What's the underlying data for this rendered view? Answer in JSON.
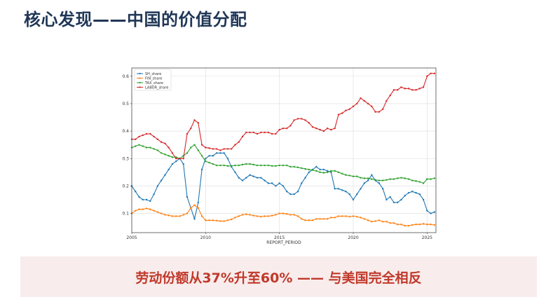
{
  "slide": {
    "title": "核心发现——中国的价值分配",
    "banner_text": "劳动份额从37%升至60% —— 与美国完全相反"
  },
  "chart_data": {
    "type": "line",
    "xlabel": "REPORT_PERIOD",
    "ylabel": "",
    "xlim": [
      2005,
      2025.6
    ],
    "ylim": [
      0.03,
      0.63
    ],
    "x_ticks": [
      2005,
      2010,
      2015,
      2020,
      2025
    ],
    "y_ticks": [
      0.1,
      0.2,
      0.3,
      0.4,
      0.5,
      0.6
    ],
    "y_tick_labels": [
      "0.1",
      "0.2",
      "0.3",
      "0.4",
      "0.5",
      "0.6"
    ],
    "grid": true,
    "legend_position": "top-left",
    "x": [
      2005.0,
      2005.25,
      2005.5,
      2005.75,
      2006.0,
      2006.25,
      2006.5,
      2006.75,
      2007.0,
      2007.25,
      2007.5,
      2007.75,
      2008.0,
      2008.25,
      2008.5,
      2008.75,
      2009.0,
      2009.25,
      2009.5,
      2009.75,
      2010.0,
      2010.25,
      2010.5,
      2010.75,
      2011.0,
      2011.25,
      2011.5,
      2011.75,
      2012.0,
      2012.25,
      2012.5,
      2012.75,
      2013.0,
      2013.25,
      2013.5,
      2013.75,
      2014.0,
      2014.25,
      2014.5,
      2014.75,
      2015.0,
      2015.25,
      2015.5,
      2015.75,
      2016.0,
      2016.25,
      2016.5,
      2016.75,
      2017.0,
      2017.25,
      2017.5,
      2017.75,
      2018.0,
      2018.25,
      2018.5,
      2018.75,
      2019.0,
      2019.25,
      2019.5,
      2019.75,
      2020.0,
      2020.25,
      2020.5,
      2020.75,
      2021.0,
      2021.25,
      2021.5,
      2021.75,
      2022.0,
      2022.25,
      2022.5,
      2022.75,
      2023.0,
      2023.25,
      2023.5,
      2023.75,
      2024.0,
      2024.25,
      2024.5,
      2024.75,
      2025.0,
      2025.25,
      2025.5
    ],
    "series": [
      {
        "name": "SH_share",
        "color": "#1f77b4",
        "marker": "o",
        "values": [
          0.2,
          0.18,
          0.16,
          0.15,
          0.15,
          0.145,
          0.17,
          0.2,
          0.22,
          0.24,
          0.26,
          0.28,
          0.29,
          0.3,
          0.28,
          0.16,
          0.12,
          0.08,
          0.14,
          0.26,
          0.3,
          0.31,
          0.31,
          0.32,
          0.32,
          0.32,
          0.3,
          0.27,
          0.25,
          0.23,
          0.22,
          0.23,
          0.24,
          0.235,
          0.23,
          0.23,
          0.22,
          0.21,
          0.21,
          0.2,
          0.21,
          0.2,
          0.18,
          0.17,
          0.17,
          0.18,
          0.21,
          0.23,
          0.25,
          0.26,
          0.27,
          0.26,
          0.26,
          0.255,
          0.25,
          0.19,
          0.19,
          0.185,
          0.18,
          0.17,
          0.15,
          0.17,
          0.19,
          0.21,
          0.22,
          0.24,
          0.22,
          0.21,
          0.19,
          0.15,
          0.16,
          0.14,
          0.14,
          0.15,
          0.165,
          0.175,
          0.18,
          0.175,
          0.17,
          0.15,
          0.11,
          0.1,
          0.105
        ]
      },
      {
        "name": "FIN_share",
        "color": "#ff7f0e",
        "marker": "o",
        "values": [
          0.1,
          0.11,
          0.115,
          0.115,
          0.118,
          0.115,
          0.11,
          0.105,
          0.1,
          0.095,
          0.093,
          0.09,
          0.09,
          0.09,
          0.095,
          0.1,
          0.12,
          0.13,
          0.12,
          0.09,
          0.075,
          0.075,
          0.075,
          0.074,
          0.072,
          0.072,
          0.075,
          0.078,
          0.085,
          0.09,
          0.095,
          0.097,
          0.095,
          0.092,
          0.09,
          0.088,
          0.09,
          0.09,
          0.092,
          0.095,
          0.1,
          0.1,
          0.098,
          0.095,
          0.095,
          0.09,
          0.08,
          0.075,
          0.075,
          0.075,
          0.08,
          0.08,
          0.08,
          0.08,
          0.085,
          0.085,
          0.09,
          0.09,
          0.09,
          0.088,
          0.09,
          0.088,
          0.085,
          0.08,
          0.075,
          0.07,
          0.072,
          0.075,
          0.07,
          0.07,
          0.065,
          0.065,
          0.06,
          0.06,
          0.055,
          0.055,
          0.058,
          0.06,
          0.06,
          0.062,
          0.06,
          0.06,
          0.058
        ]
      },
      {
        "name": "TAX_share",
        "color": "#2ca02c",
        "marker": "o",
        "values": [
          0.34,
          0.345,
          0.35,
          0.345,
          0.34,
          0.34,
          0.335,
          0.33,
          0.32,
          0.315,
          0.31,
          0.305,
          0.305,
          0.3,
          0.31,
          0.32,
          0.34,
          0.35,
          0.33,
          0.31,
          0.29,
          0.285,
          0.28,
          0.275,
          0.275,
          0.275,
          0.273,
          0.273,
          0.275,
          0.275,
          0.278,
          0.28,
          0.28,
          0.278,
          0.275,
          0.275,
          0.275,
          0.275,
          0.273,
          0.273,
          0.275,
          0.275,
          0.275,
          0.27,
          0.27,
          0.268,
          0.265,
          0.262,
          0.26,
          0.258,
          0.255,
          0.25,
          0.248,
          0.25,
          0.255,
          0.255,
          0.25,
          0.245,
          0.24,
          0.238,
          0.235,
          0.235,
          0.23,
          0.228,
          0.228,
          0.225,
          0.222,
          0.22,
          0.22,
          0.222,
          0.225,
          0.225,
          0.228,
          0.23,
          0.228,
          0.225,
          0.22,
          0.218,
          0.215,
          0.21,
          0.225,
          0.225,
          0.228
        ]
      },
      {
        "name": "LABOR_share",
        "color": "#d62728",
        "marker": "o",
        "values": [
          0.37,
          0.37,
          0.38,
          0.385,
          0.39,
          0.39,
          0.38,
          0.37,
          0.36,
          0.355,
          0.34,
          0.32,
          0.3,
          0.3,
          0.3,
          0.39,
          0.41,
          0.44,
          0.43,
          0.35,
          0.34,
          0.338,
          0.335,
          0.335,
          0.33,
          0.335,
          0.335,
          0.335,
          0.35,
          0.36,
          0.38,
          0.395,
          0.395,
          0.395,
          0.39,
          0.395,
          0.395,
          0.395,
          0.39,
          0.39,
          0.405,
          0.41,
          0.41,
          0.42,
          0.44,
          0.445,
          0.445,
          0.44,
          0.43,
          0.415,
          0.41,
          0.405,
          0.4,
          0.41,
          0.405,
          0.41,
          0.46,
          0.465,
          0.475,
          0.48,
          0.49,
          0.5,
          0.52,
          0.51,
          0.5,
          0.49,
          0.47,
          0.47,
          0.48,
          0.51,
          0.53,
          0.55,
          0.55,
          0.56,
          0.555,
          0.555,
          0.55,
          0.55,
          0.555,
          0.56,
          0.6,
          0.61,
          0.61
        ]
      }
    ]
  }
}
